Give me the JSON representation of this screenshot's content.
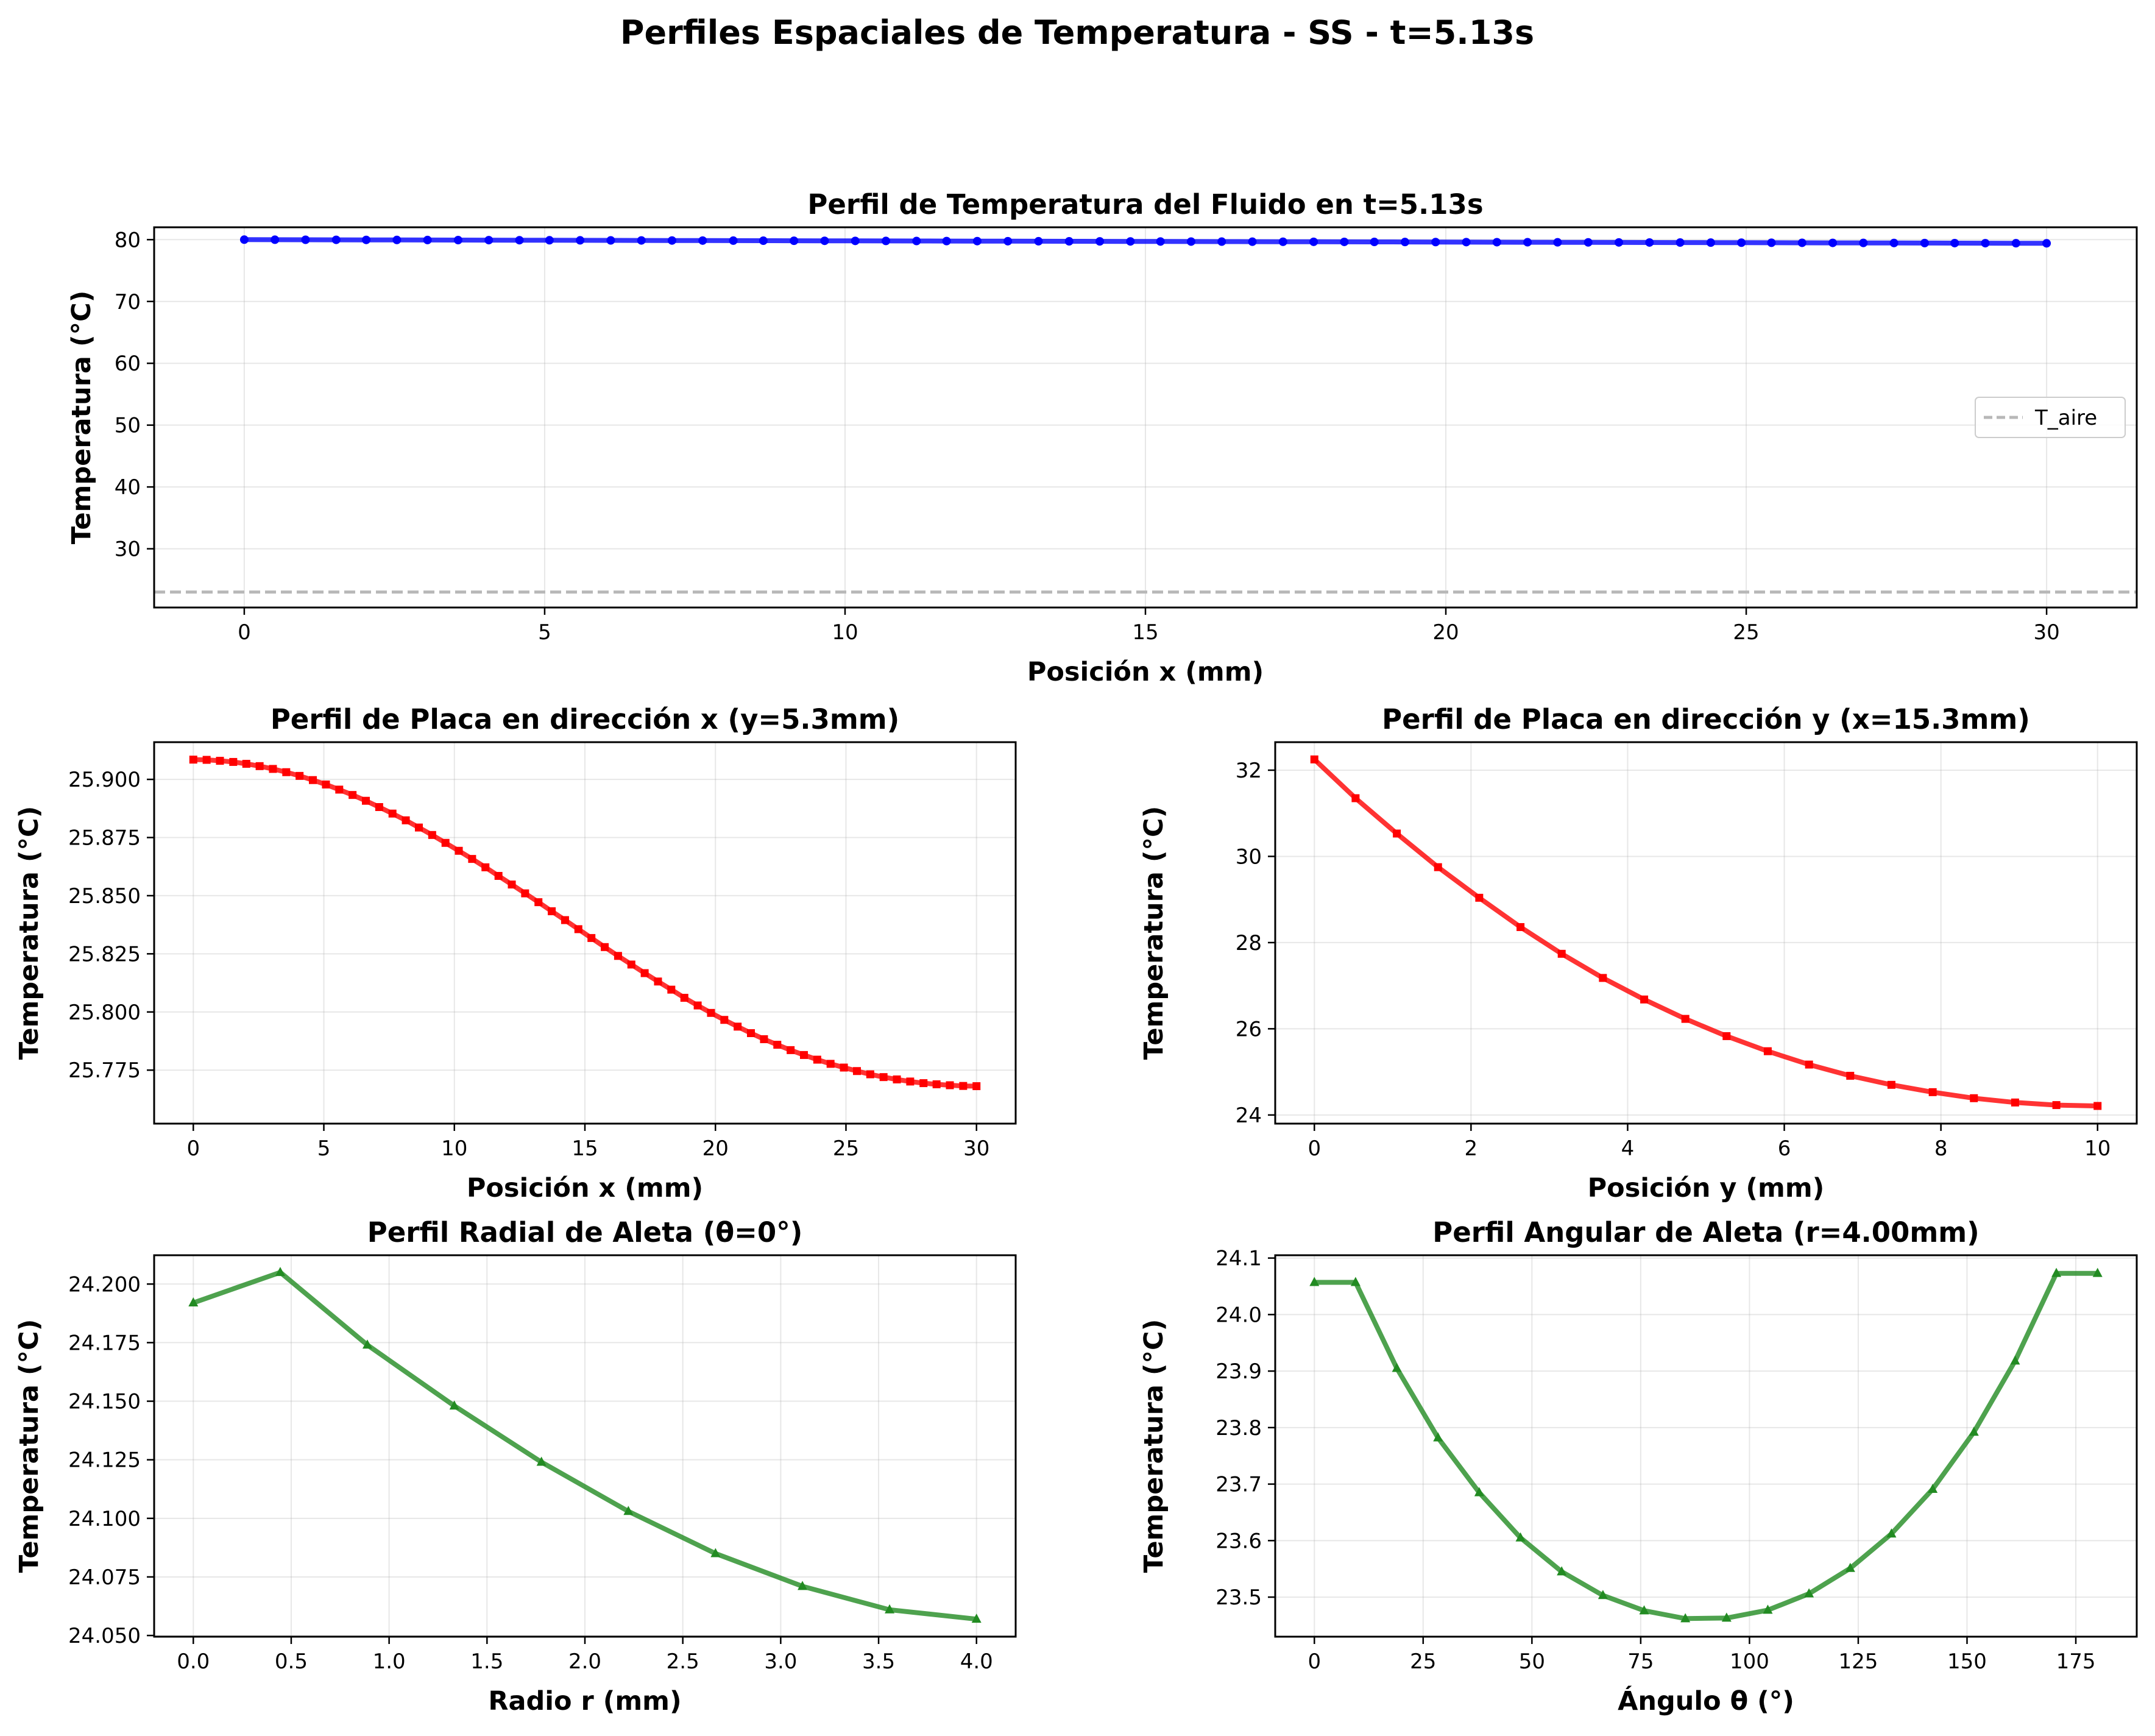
{
  "figure_title": "Perfiles Espaciales de Temperatura - SS - t=5.13s",
  "chart_data": [
    {
      "id": "fluid",
      "type": "line",
      "title": "Perfil de Temperatura del Fluido en t=5.13s",
      "xlabel": "Posición x (mm)",
      "ylabel": "Temperatura (°C)",
      "xlim": [
        -1.5,
        31.5
      ],
      "ylim": [
        20.5,
        82.0
      ],
      "xticks": [
        0,
        5,
        10,
        15,
        20,
        25,
        30
      ],
      "yticks": [
        30,
        40,
        50,
        60,
        70,
        80
      ],
      "tick_decimals": 0,
      "grid": true,
      "color": "#0000ff",
      "marker": "circle",
      "series": [
        {
          "x": [
            0,
            0.51,
            1.02,
            1.53,
            2.03,
            2.54,
            3.05,
            3.56,
            4.07,
            4.58,
            5.08,
            5.59,
            6.1,
            6.61,
            7.12,
            7.63,
            8.14,
            8.64,
            9.15,
            9.66,
            10.17,
            10.68,
            11.19,
            11.69,
            12.2,
            12.71,
            13.22,
            13.73,
            14.24,
            14.75,
            15.25,
            15.76,
            16.27,
            16.78,
            17.29,
            17.8,
            18.31,
            18.81,
            19.32,
            19.83,
            20.34,
            20.85,
            21.36,
            21.86,
            22.37,
            22.88,
            23.39,
            23.9,
            24.41,
            24.92,
            25.42,
            25.93,
            26.44,
            26.95,
            27.46,
            27.97,
            28.47,
            28.98,
            29.49,
            30
          ],
          "y": [
            80.0,
            79.99,
            79.98,
            79.97,
            79.96,
            79.95,
            79.94,
            79.93,
            79.92,
            79.91,
            79.9,
            79.89,
            79.88,
            79.87,
            79.86,
            79.85,
            79.84,
            79.83,
            79.82,
            79.81,
            79.8,
            79.79,
            79.78,
            79.77,
            79.76,
            79.75,
            79.74,
            79.73,
            79.72,
            79.71,
            79.7,
            79.69,
            79.68,
            79.67,
            79.66,
            79.65,
            79.64,
            79.63,
            79.62,
            79.61,
            79.6,
            79.59,
            79.58,
            79.57,
            79.56,
            79.55,
            79.54,
            79.53,
            79.52,
            79.51,
            79.5,
            79.49,
            79.48,
            79.47,
            79.46,
            79.45,
            79.44,
            79.43,
            79.42,
            79.41
          ]
        }
      ],
      "reference_line": {
        "name": "T_aire",
        "y": 23.0,
        "color": "#b8b8b8",
        "style": "dashed"
      },
      "legend": {
        "entries": [
          "T_aire"
        ],
        "placement": "center-right"
      }
    },
    {
      "id": "plate_x",
      "type": "line",
      "title": "Perfil de Placa en dirección x (y=5.3mm)",
      "xlabel": "Posición x (mm)",
      "ylabel": "Temperatura (°C)",
      "xlim": [
        -1.5,
        31.5
      ],
      "ylim": [
        25.752,
        25.916
      ],
      "xticks": [
        0,
        5,
        10,
        15,
        20,
        25,
        30
      ],
      "yticks": [
        25.775,
        25.8,
        25.825,
        25.85,
        25.875,
        25.9
      ],
      "tick_decimals": 3,
      "grid": true,
      "color": "#ff0000",
      "marker": "square",
      "series": [
        {
          "x": [
            0,
            0.51,
            1.02,
            1.53,
            2.03,
            2.54,
            3.05,
            3.56,
            4.07,
            4.58,
            5.08,
            5.59,
            6.1,
            6.61,
            7.12,
            7.63,
            8.14,
            8.64,
            9.15,
            9.66,
            10.17,
            10.68,
            11.19,
            11.69,
            12.2,
            12.71,
            13.22,
            13.73,
            14.24,
            14.75,
            15.25,
            15.76,
            16.27,
            16.78,
            17.29,
            17.8,
            18.31,
            18.81,
            19.32,
            19.83,
            20.34,
            20.85,
            21.36,
            21.86,
            22.37,
            22.88,
            23.39,
            23.9,
            24.41,
            24.92,
            25.42,
            25.93,
            26.44,
            26.95,
            27.46,
            27.97,
            28.47,
            28.98,
            29.49,
            30
          ],
          "y": [
            25.9085,
            25.9084,
            25.908,
            25.9075,
            25.9067,
            25.9057,
            25.9045,
            25.9031,
            25.9015,
            25.8997,
            25.8978,
            25.8956,
            25.8933,
            25.8908,
            25.8881,
            25.8853,
            25.8824,
            25.8793,
            25.8761,
            25.8727,
            25.8693,
            25.8658,
            25.8622,
            25.8585,
            25.8548,
            25.851,
            25.8472,
            25.8433,
            25.8395,
            25.8356,
            25.8318,
            25.8279,
            25.8241,
            25.8204,
            25.8167,
            25.8131,
            25.8096,
            25.8061,
            25.8028,
            25.7996,
            25.7966,
            25.7937,
            25.7909,
            25.7883,
            25.7859,
            25.7836,
            25.7815,
            25.7795,
            25.7777,
            25.7761,
            25.7746,
            25.7732,
            25.772,
            25.771,
            25.7701,
            25.7694,
            25.7689,
            25.7685,
            25.7682,
            25.7681
          ]
        }
      ]
    },
    {
      "id": "plate_y",
      "type": "line",
      "title": "Perfil de Placa en dirección y (x=15.3mm)",
      "xlabel": "Posición y (mm)",
      "ylabel": "Temperatura (°C)",
      "xlim": [
        -0.5,
        10.5
      ],
      "ylim": [
        23.8,
        32.65
      ],
      "xticks": [
        0,
        2,
        4,
        6,
        8,
        10
      ],
      "yticks": [
        24,
        26,
        28,
        30,
        32
      ],
      "tick_decimals": 0,
      "grid": true,
      "color": "#ff0000",
      "marker": "square",
      "series": [
        {
          "x": [
            0,
            0.526,
            1.053,
            1.579,
            2.105,
            2.632,
            3.158,
            3.684,
            4.211,
            4.737,
            5.263,
            5.789,
            6.316,
            6.842,
            7.368,
            7.895,
            8.421,
            8.947,
            9.474,
            10
          ],
          "y": [
            32.25,
            31.35,
            30.53,
            29.75,
            29.04,
            28.36,
            27.74,
            27.18,
            26.68,
            26.23,
            25.83,
            25.48,
            25.17,
            24.91,
            24.7,
            24.53,
            24.39,
            24.29,
            24.23,
            24.21
          ]
        }
      ]
    },
    {
      "id": "fin_radial",
      "type": "line",
      "title": "Perfil Radial de Aleta (θ=0°)",
      "xlabel": "Radio r (mm)",
      "ylabel": "Temperatura (°C)",
      "xlim": [
        -0.2,
        4.2
      ],
      "ylim": [
        24.0495,
        24.2123
      ],
      "xticks": [
        0.0,
        0.5,
        1.0,
        1.5,
        2.0,
        2.5,
        3.0,
        3.5,
        4.0
      ],
      "yticks": [
        24.05,
        24.075,
        24.1,
        24.125,
        24.15,
        24.175,
        24.2
      ],
      "tick_decimals": 3,
      "xtick_decimals": 1,
      "grid": true,
      "color": "#228b22",
      "marker": "triangle",
      "series": [
        {
          "x": [
            0,
            0.444,
            0.889,
            1.333,
            1.778,
            2.222,
            2.667,
            3.111,
            3.556,
            4.0
          ],
          "y": [
            24.192,
            24.205,
            24.174,
            24.148,
            24.124,
            24.103,
            24.085,
            24.071,
            24.061,
            24.057
          ]
        }
      ]
    },
    {
      "id": "fin_angular",
      "type": "line",
      "title": "Perfil Angular de Aleta (r=4.00mm)",
      "xlabel": "Ángulo θ (°)",
      "ylabel": "Temperatura (°C)",
      "xlim": [
        -9,
        189
      ],
      "ylim": [
        23.43,
        24.105
      ],
      "xticks": [
        0,
        25,
        50,
        75,
        100,
        125,
        150,
        175
      ],
      "yticks": [
        23.5,
        23.6,
        23.7,
        23.8,
        23.9,
        24.0,
        24.1
      ],
      "tick_decimals": 1,
      "grid": true,
      "color": "#228b22",
      "marker": "triangle",
      "series": [
        {
          "x": [
            0,
            9.47,
            18.95,
            28.42,
            37.89,
            47.37,
            56.84,
            66.32,
            75.79,
            85.26,
            94.74,
            104.21,
            113.68,
            123.16,
            132.63,
            142.11,
            151.58,
            161.05,
            170.53,
            180
          ],
          "y": [
            24.057,
            24.057,
            23.905,
            23.782,
            23.685,
            23.605,
            23.545,
            23.503,
            23.476,
            23.462,
            23.463,
            23.477,
            23.506,
            23.551,
            23.612,
            23.691,
            23.792,
            23.918,
            24.073,
            24.073
          ]
        }
      ]
    }
  ]
}
